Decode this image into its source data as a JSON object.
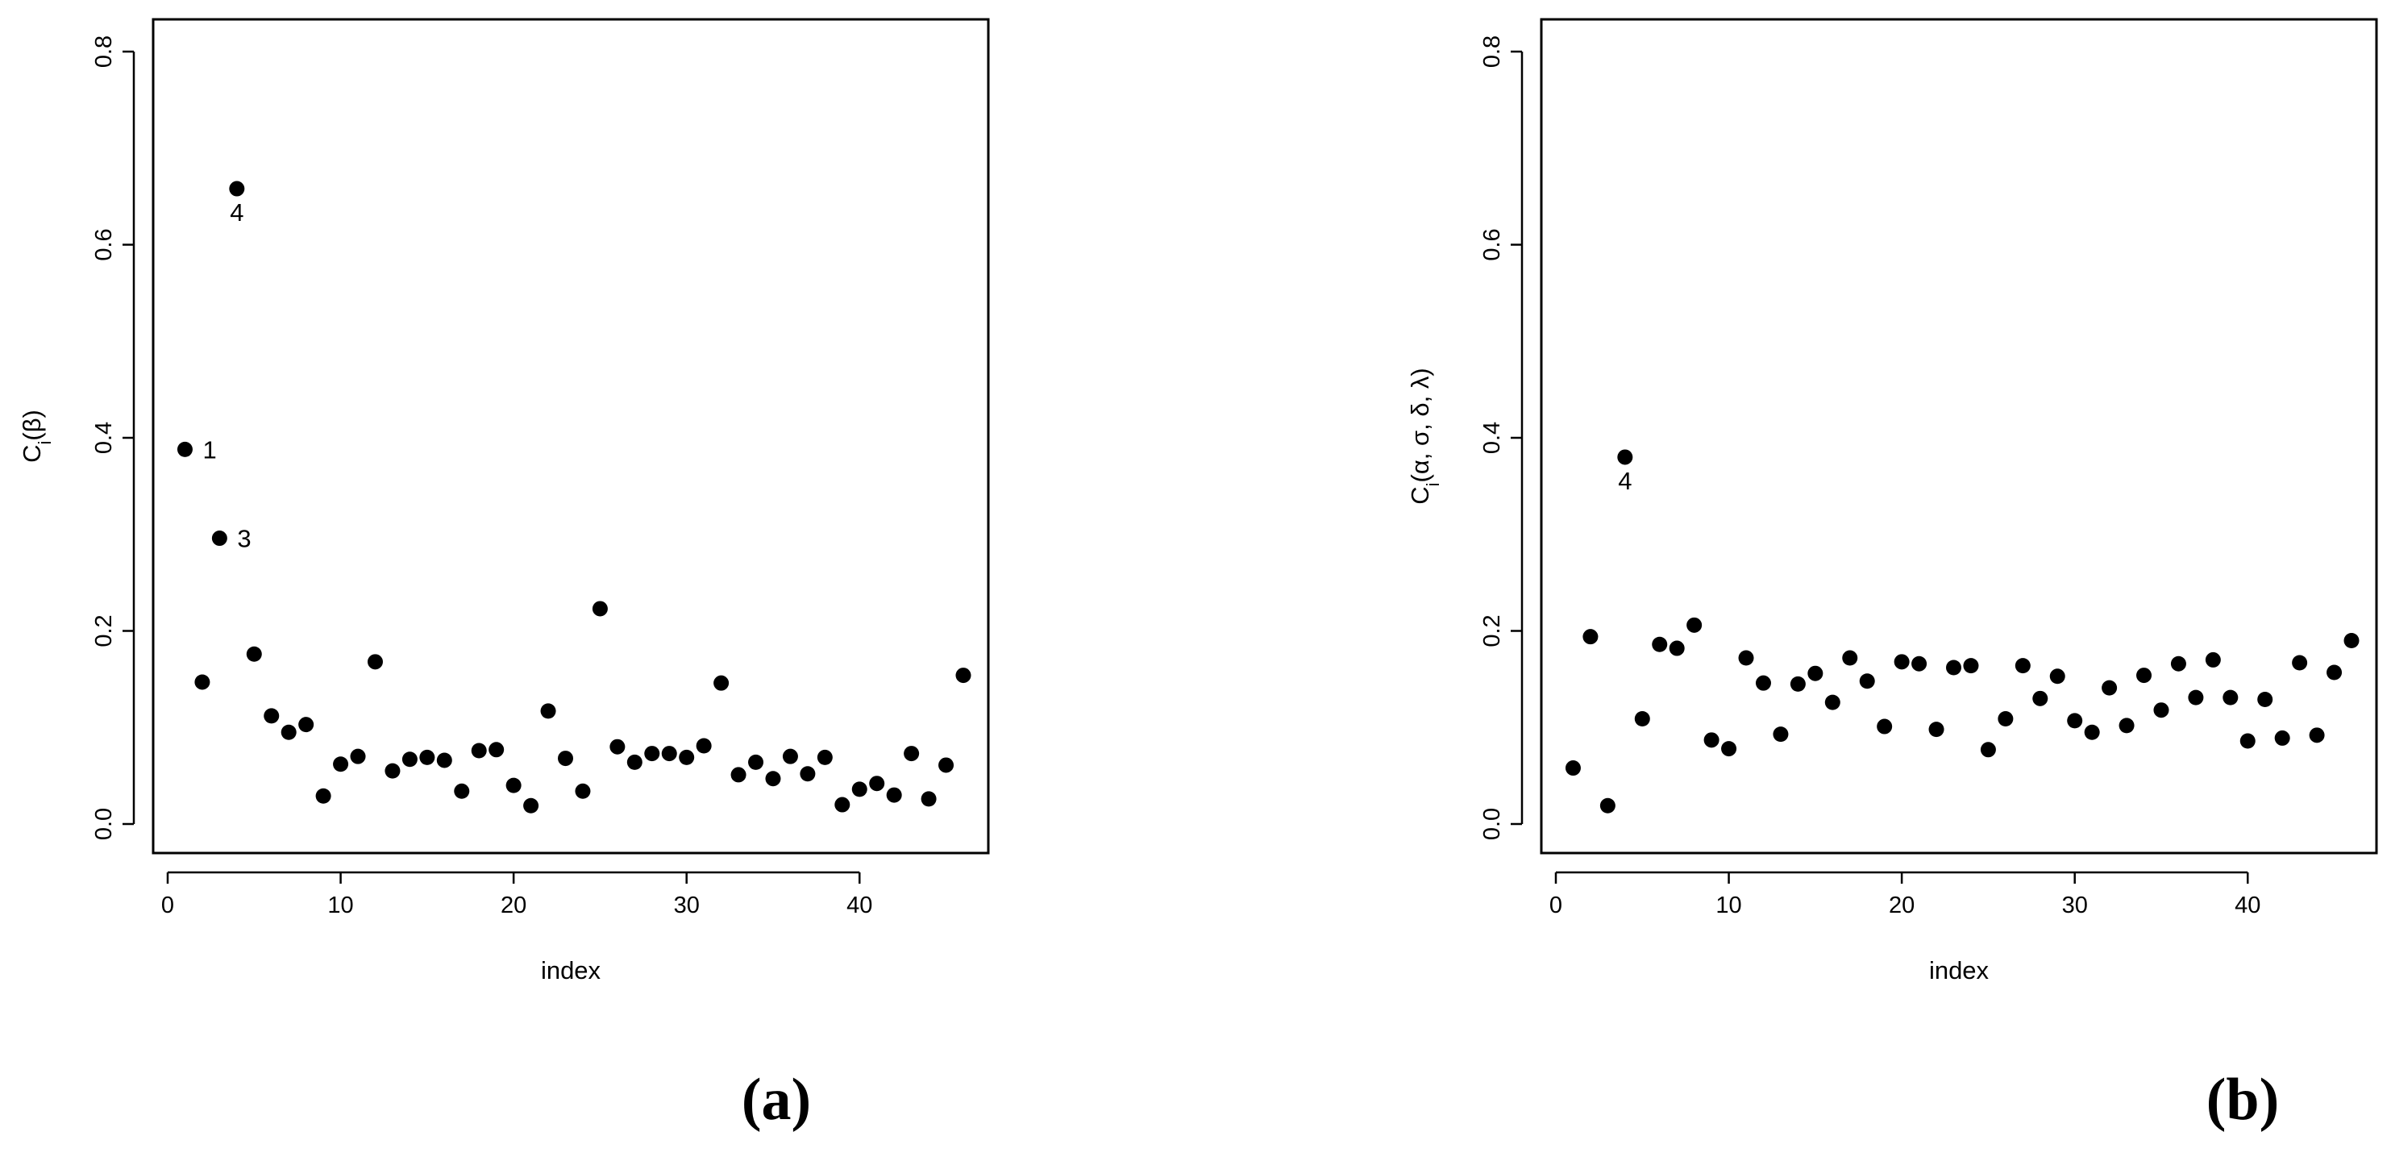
{
  "chart_data": [
    {
      "type": "scatter",
      "panel_label": "(a)",
      "xlabel": "index",
      "ylabel": "C_i(β)",
      "ylabel_main": "C",
      "ylabel_sub": "i",
      "ylabel_rest": "(β)",
      "xlim": [
        0,
        46
      ],
      "ylim": [
        0,
        0.8
      ],
      "x_ticks": [
        "0",
        "10",
        "20",
        "30",
        "40"
      ],
      "y_ticks": [
        "0.0",
        "0.2",
        "0.4",
        "0.6",
        "0.8"
      ],
      "x": [
        1,
        2,
        3,
        4,
        5,
        6,
        7,
        8,
        9,
        10,
        11,
        12,
        13,
        14,
        15,
        16,
        17,
        18,
        19,
        20,
        21,
        22,
        23,
        24,
        25,
        26,
        27,
        28,
        29,
        30,
        31,
        32,
        33,
        34,
        35,
        36,
        37,
        38,
        39,
        40,
        41,
        42,
        43,
        44,
        45,
        46
      ],
      "y": [
        0.388,
        0.147,
        0.296,
        0.658,
        0.176,
        0.112,
        0.095,
        0.103,
        0.029,
        0.062,
        0.07,
        0.168,
        0.055,
        0.067,
        0.069,
        0.066,
        0.034,
        0.076,
        0.077,
        0.04,
        0.019,
        0.117,
        0.068,
        0.034,
        0.223,
        0.08,
        0.064,
        0.073,
        0.073,
        0.069,
        0.081,
        0.146,
        0.051,
        0.064,
        0.047,
        0.07,
        0.052,
        0.069,
        0.02,
        0.036,
        0.042,
        0.03,
        0.073,
        0.026,
        0.061,
        0.154
      ],
      "annotations": [
        {
          "index": 1,
          "label": "1",
          "position": "right"
        },
        {
          "index": 3,
          "label": "3",
          "position": "right"
        },
        {
          "index": 4,
          "label": "4",
          "position": "below"
        }
      ]
    },
    {
      "type": "scatter",
      "panel_label": "(b)",
      "xlabel": "index",
      "ylabel": "C_i(α, σ, δ, λ)",
      "ylabel_main": "C",
      "ylabel_sub": "i",
      "ylabel_rest": "(α, σ, δ, λ)",
      "xlim": [
        0,
        46
      ],
      "ylim": [
        0,
        0.8
      ],
      "x_ticks": [
        "0",
        "10",
        "20",
        "30",
        "40"
      ],
      "y_ticks": [
        "0.0",
        "0.2",
        "0.4",
        "0.6",
        "0.8"
      ],
      "x": [
        1,
        2,
        3,
        4,
        5,
        6,
        7,
        8,
        9,
        10,
        11,
        12,
        13,
        14,
        15,
        16,
        17,
        18,
        19,
        20,
        21,
        22,
        23,
        24,
        25,
        26,
        27,
        28,
        29,
        30,
        31,
        32,
        33,
        34,
        35,
        36,
        37,
        38,
        39,
        40,
        41,
        42,
        43,
        44,
        45,
        46
      ],
      "y": [
        0.058,
        0.194,
        0.019,
        0.38,
        0.109,
        0.186,
        0.182,
        0.206,
        0.087,
        0.078,
        0.172,
        0.146,
        0.093,
        0.145,
        0.156,
        0.126,
        0.172,
        0.148,
        0.101,
        0.168,
        0.166,
        0.098,
        0.162,
        0.164,
        0.077,
        0.109,
        0.164,
        0.13,
        0.153,
        0.107,
        0.095,
        0.141,
        0.102,
        0.154,
        0.118,
        0.166,
        0.131,
        0.17,
        0.131,
        0.086,
        0.129,
        0.089,
        0.167,
        0.092,
        0.157,
        0.19
      ],
      "annotations": [
        {
          "index": 4,
          "label": "4",
          "position": "below"
        }
      ]
    }
  ]
}
